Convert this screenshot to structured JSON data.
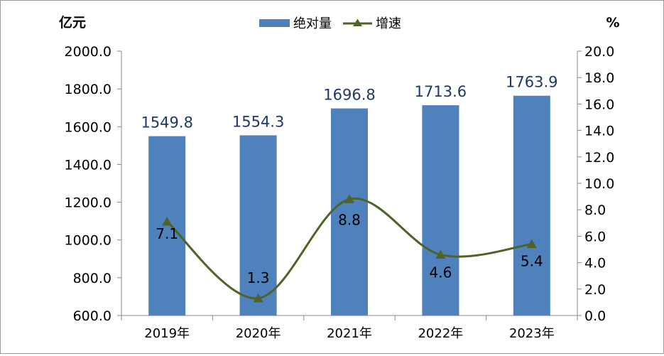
{
  "chart_data": {
    "type": "bar+line",
    "categories": [
      "2019年",
      "2020年",
      "2021年",
      "2022年",
      "2023年"
    ],
    "series": [
      {
        "name": "绝对量",
        "type": "bar",
        "axis": "left",
        "values": [
          1549.8,
          1554.3,
          1696.8,
          1713.6,
          1763.9
        ],
        "labels": [
          "1549.8",
          "1554.3",
          "1696.8",
          "1713.6",
          "1763.9"
        ],
        "color": "#4f81bd"
      },
      {
        "name": "增速",
        "type": "line",
        "axis": "right",
        "values": [
          7.1,
          1.3,
          8.8,
          4.6,
          5.4
        ],
        "labels": [
          "7.1",
          "1.3",
          "8.8",
          "4.6",
          "5.4"
        ],
        "color": "#4f6228",
        "marker": "triangle",
        "smooth": true
      }
    ],
    "y_left": {
      "unit": "亿元",
      "min": 600,
      "max": 2000,
      "step": 200,
      "ticks": [
        "600.0",
        "800.0",
        "1000.0",
        "1200.0",
        "1400.0",
        "1600.0",
        "1800.0",
        "2000.0"
      ]
    },
    "y_right": {
      "unit": "%",
      "min": 0,
      "max": 20,
      "step": 2,
      "ticks": [
        "0.0",
        "2.0",
        "4.0",
        "6.0",
        "8.0",
        "10.0",
        "12.0",
        "14.0",
        "16.0",
        "18.0",
        "20.0"
      ]
    },
    "legend": {
      "position": "top-center",
      "entries": [
        "绝对量",
        "增速"
      ]
    },
    "grid": false
  }
}
